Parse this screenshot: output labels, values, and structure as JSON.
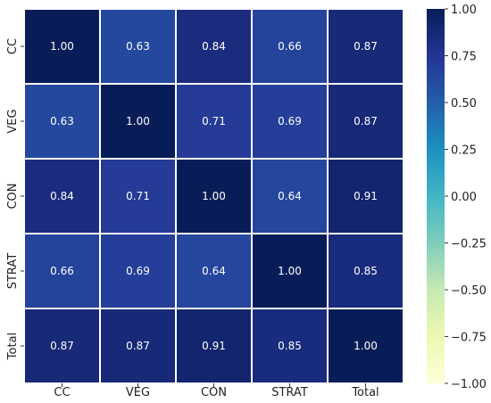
{
  "chart_data": {
    "type": "heatmap",
    "title": "",
    "xlabel": "",
    "ylabel": "",
    "categories_x": [
      "CC",
      "VEG",
      "CON",
      "STRAT",
      "Total"
    ],
    "categories_y": [
      "CC",
      "VEG",
      "CON",
      "STRAT",
      "Total"
    ],
    "values": [
      [
        1.0,
        0.63,
        0.84,
        0.66,
        0.87
      ],
      [
        0.63,
        1.0,
        0.71,
        0.69,
        0.87
      ],
      [
        0.84,
        0.71,
        1.0,
        0.64,
        0.91
      ],
      [
        0.66,
        0.69,
        0.64,
        1.0,
        0.85
      ],
      [
        0.87,
        0.87,
        0.91,
        0.85,
        1.0
      ]
    ],
    "value_labels": [
      [
        "1.00",
        "0.63",
        "0.84",
        "0.66",
        "0.87"
      ],
      [
        "0.63",
        "1.00",
        "0.71",
        "0.69",
        "0.87"
      ],
      [
        "0.84",
        "0.71",
        "1.00",
        "0.64",
        "0.91"
      ],
      [
        "0.66",
        "0.69",
        "0.64",
        "1.00",
        "0.85"
      ],
      [
        "0.87",
        "0.87",
        "0.91",
        "0.85",
        "1.00"
      ]
    ],
    "colorbar": {
      "range": [
        -1.0,
        1.0
      ],
      "ticks": [
        "1.00",
        "0.75",
        "0.50",
        "0.25",
        "0.00",
        "−0.25",
        "−0.50",
        "−0.75",
        "−1.00"
      ],
      "tick_values": [
        1.0,
        0.75,
        0.5,
        0.25,
        0.0,
        -0.25,
        -0.5,
        -0.75,
        -1.0
      ],
      "colormap": "YlGnBu"
    },
    "grid": true,
    "cell_border_color": "#ffffff",
    "annotation_color": "#ffffff"
  }
}
